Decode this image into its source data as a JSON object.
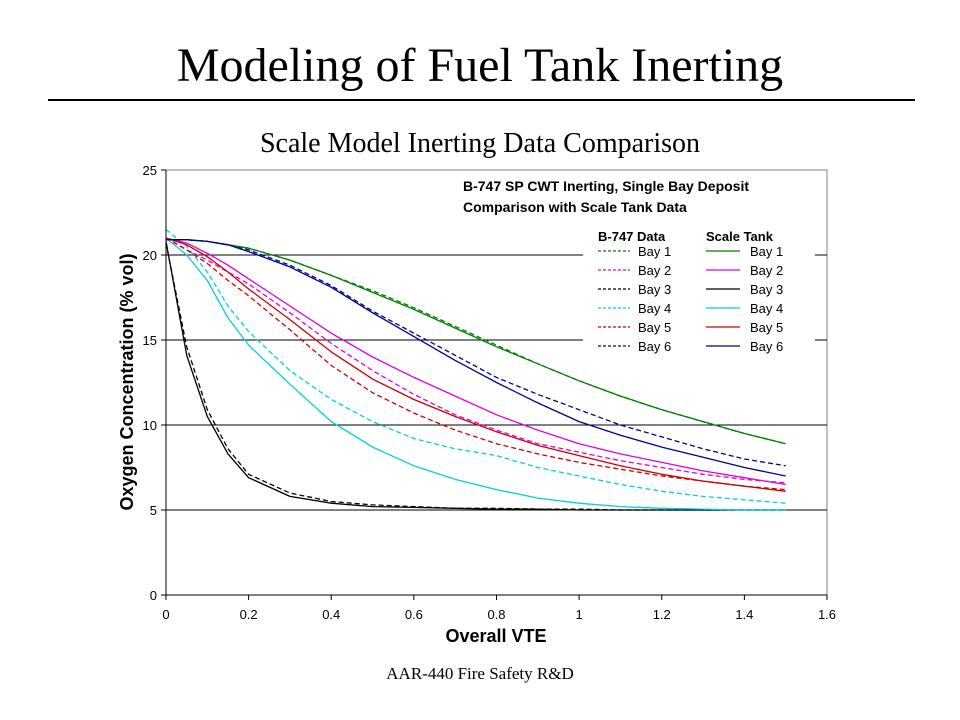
{
  "slide": {
    "title": "Modeling of Fuel Tank Inerting",
    "subtitle": "Scale Model Inerting Data Comparison",
    "footer": "AAR-440 Fire Safety R&D"
  },
  "chart_data": {
    "type": "line",
    "xlabel": "Overall VTE",
    "ylabel": "Oxygen Concentration (% vol)",
    "xlim": [
      0,
      1.6
    ],
    "ylim": [
      0,
      25
    ],
    "xticks": [
      "0",
      "0.2",
      "0.4",
      "0.6",
      "0.8",
      "1",
      "1.2",
      "1.4",
      "1.6"
    ],
    "yticks": [
      "0",
      "5",
      "10",
      "15",
      "20",
      "25"
    ],
    "grid": "horizontal",
    "annotation": [
      "B-747 SP CWT Inerting, Single Bay Deposit",
      "Comparison with Scale Tank Data"
    ],
    "legend": {
      "placement": "top-right",
      "col_headers": [
        "B-747 Data",
        "Scale Tank"
      ]
    },
    "colors": {
      "bay1": "#008000",
      "bay2": "#e000e0",
      "bay3": "#000000",
      "bay4": "#00d0e0",
      "bay5": "#d00000",
      "bay6": "#000090"
    },
    "x": [
      0,
      0.05,
      0.1,
      0.15,
      0.2,
      0.3,
      0.4,
      0.5,
      0.6,
      0.7,
      0.8,
      0.9,
      1.0,
      1.1,
      1.2,
      1.3,
      1.4,
      1.5
    ],
    "series": [
      {
        "name": "Bay 1",
        "group": "B-747 Data",
        "style": "dashed",
        "color": "#008000",
        "values": [
          20.9,
          20.9,
          20.8,
          20.6,
          20.4,
          19.7,
          18.8,
          17.9,
          16.9,
          15.8,
          14.7,
          13.6,
          12.6,
          11.7,
          10.9,
          10.2,
          9.5,
          8.9
        ]
      },
      {
        "name": "Bay 2",
        "group": "B-747 Data",
        "style": "dashed",
        "color": "#e000e0",
        "values": [
          21.0,
          20.3,
          19.7,
          19.0,
          18.3,
          16.6,
          14.8,
          13.2,
          11.8,
          10.6,
          9.7,
          8.9,
          8.4,
          7.9,
          7.5,
          7.1,
          6.8,
          6.6
        ]
      },
      {
        "name": "Bay 3",
        "group": "B-747 Data",
        "style": "dashed",
        "color": "#000000",
        "values": [
          20.7,
          14.6,
          10.9,
          8.6,
          7.1,
          6.0,
          5.5,
          5.3,
          5.2,
          5.1,
          5.1,
          5.05,
          5.05,
          5.0,
          5.0,
          5.0,
          5.0,
          5.0
        ]
      },
      {
        "name": "Bay 4",
        "group": "B-747 Data",
        "style": "dashed",
        "color": "#00d0e0",
        "values": [
          21.5,
          20.5,
          19.0,
          17.0,
          15.5,
          13.2,
          11.5,
          10.2,
          9.2,
          8.6,
          8.2,
          7.5,
          7.0,
          6.5,
          6.1,
          5.8,
          5.6,
          5.4
        ]
      },
      {
        "name": "Bay 5",
        "group": "B-747 Data",
        "style": "dashed",
        "color": "#d00000",
        "values": [
          21.0,
          20.3,
          19.5,
          18.5,
          17.6,
          15.6,
          13.5,
          11.9,
          10.7,
          9.7,
          8.9,
          8.3,
          7.8,
          7.4,
          7.0,
          6.7,
          6.4,
          6.2
        ]
      },
      {
        "name": "Bay 6",
        "group": "B-747 Data",
        "style": "dashed",
        "color": "#000090",
        "values": [
          20.9,
          20.9,
          20.8,
          20.6,
          20.3,
          19.4,
          18.2,
          16.7,
          15.4,
          14.1,
          12.8,
          11.8,
          10.9,
          10.0,
          9.3,
          8.6,
          8.0,
          7.6
        ]
      },
      {
        "name": "Bay 1",
        "group": "Scale Tank",
        "style": "solid",
        "color": "#008000",
        "values": [
          20.9,
          20.9,
          20.8,
          20.6,
          20.4,
          19.7,
          18.8,
          17.8,
          16.8,
          15.7,
          14.6,
          13.6,
          12.6,
          11.7,
          10.9,
          10.2,
          9.5,
          8.9
        ]
      },
      {
        "name": "Bay 2",
        "group": "Scale Tank",
        "style": "solid",
        "color": "#e000e0",
        "values": [
          21.0,
          20.7,
          20.1,
          19.4,
          18.6,
          17.0,
          15.4,
          14.0,
          12.8,
          11.7,
          10.6,
          9.7,
          8.9,
          8.3,
          7.8,
          7.3,
          6.9,
          6.5
        ]
      },
      {
        "name": "Bay 3",
        "group": "Scale Tank",
        "style": "solid",
        "color": "#000000",
        "values": [
          20.8,
          14.1,
          10.5,
          8.3,
          6.9,
          5.8,
          5.4,
          5.2,
          5.15,
          5.1,
          5.05,
          5.05,
          5.0,
          5.0,
          5.0,
          5.0,
          5.0,
          5.0
        ]
      },
      {
        "name": "Bay 4",
        "group": "Scale Tank",
        "style": "solid",
        "color": "#00d0e0",
        "values": [
          21.0,
          20.0,
          18.5,
          16.3,
          14.7,
          12.4,
          10.2,
          8.7,
          7.6,
          6.8,
          6.2,
          5.7,
          5.4,
          5.2,
          5.1,
          5.05,
          5.0,
          5.0
        ]
      },
      {
        "name": "Bay 5",
        "group": "Scale Tank",
        "style": "solid",
        "color": "#d00000",
        "values": [
          21.0,
          20.6,
          19.9,
          19.0,
          18.0,
          16.2,
          14.3,
          12.7,
          11.5,
          10.5,
          9.6,
          8.8,
          8.2,
          7.6,
          7.1,
          6.7,
          6.4,
          6.1
        ]
      },
      {
        "name": "Bay 6",
        "group": "Scale Tank",
        "style": "solid",
        "color": "#000090",
        "values": [
          20.9,
          20.9,
          20.8,
          20.6,
          20.2,
          19.3,
          18.1,
          16.6,
          15.2,
          13.8,
          12.5,
          11.3,
          10.2,
          9.4,
          8.7,
          8.1,
          7.5,
          7.0
        ]
      }
    ]
  }
}
